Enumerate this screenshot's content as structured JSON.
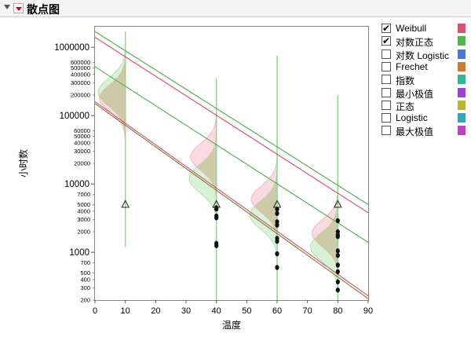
{
  "window": {
    "title": "散点图"
  },
  "chart_data": {
    "type": "scatter",
    "xlabel": "温度",
    "ylabel": "小时数",
    "xlim": [
      0,
      90
    ],
    "ylim": [
      200,
      2000000
    ],
    "yscale": "log",
    "xticks": [
      0,
      10,
      20,
      30,
      40,
      50,
      60,
      70,
      80,
      90
    ],
    "yticks_major": [
      {
        "v": 1000000,
        "label": "1000000"
      },
      {
        "v": 100000,
        "label": "100000"
      },
      {
        "v": 10000,
        "label": "10000"
      },
      {
        "v": 1000,
        "label": "1000"
      }
    ],
    "yticks_minor": [
      {
        "v": 600000,
        "label": "600000"
      },
      {
        "v": 500000,
        "label": "500000"
      },
      {
        "v": 400000,
        "label": "400000"
      },
      {
        "v": 300000,
        "label": "300000"
      },
      {
        "v": 200000,
        "label": "200000"
      },
      {
        "v": 60000,
        "label": "60000"
      },
      {
        "v": 50000,
        "label": "50000"
      },
      {
        "v": 40000,
        "label": "40000"
      },
      {
        "v": 30000,
        "label": "30000"
      },
      {
        "v": 20000,
        "label": "20000"
      },
      {
        "v": 7000,
        "label": "7000"
      },
      {
        "v": 5000,
        "label": "5000"
      },
      {
        "v": 4000,
        "label": "4000"
      },
      {
        "v": 3000,
        "label": "3000"
      },
      {
        "v": 2000,
        "label": "2000"
      },
      {
        "v": 700,
        "label": "700"
      },
      {
        "v": 500,
        "label": "500"
      },
      {
        "v": 400,
        "label": "400"
      },
      {
        "v": 300,
        "label": "300"
      },
      {
        "v": 200,
        "label": "200"
      }
    ],
    "points": [
      {
        "x": 40,
        "y": 4500
      },
      {
        "x": 40,
        "y": 4300
      },
      {
        "x": 40,
        "y": 3400
      },
      {
        "x": 40,
        "y": 3200
      },
      {
        "x": 40,
        "y": 1350
      },
      {
        "x": 40,
        "y": 1250
      },
      {
        "x": 60,
        "y": 4300
      },
      {
        "x": 60,
        "y": 3700
      },
      {
        "x": 60,
        "y": 2800
      },
      {
        "x": 60,
        "y": 2500
      },
      {
        "x": 60,
        "y": 1600
      },
      {
        "x": 60,
        "y": 1450
      },
      {
        "x": 60,
        "y": 950
      },
      {
        "x": 60,
        "y": 600
      },
      {
        "x": 80,
        "y": 2900
      },
      {
        "x": 80,
        "y": 2000
      },
      {
        "x": 80,
        "y": 1800
      },
      {
        "x": 80,
        "y": 1700
      },
      {
        "x": 80,
        "y": 1050
      },
      {
        "x": 80,
        "y": 900
      },
      {
        "x": 80,
        "y": 650
      },
      {
        "x": 80,
        "y": 520
      },
      {
        "x": 80,
        "y": 370
      },
      {
        "x": 80,
        "y": 280
      }
    ],
    "censored_points": [
      {
        "x": 10,
        "y": 5000
      },
      {
        "x": 40,
        "y": 5000
      },
      {
        "x": 60,
        "y": 5000
      },
      {
        "x": 80,
        "y": 5000
      }
    ],
    "fit_lines": [
      {
        "series": "Weibull",
        "color": "#d9506a",
        "points": [
          [
            0,
            1400000
          ],
          [
            90,
            3800
          ]
        ]
      },
      {
        "series": "Weibull",
        "color": "#d9506a",
        "points": [
          [
            0,
            160000
          ],
          [
            90,
            230
          ]
        ]
      },
      {
        "series": "对数正态",
        "color": "#4cb050",
        "points": [
          [
            0,
            1700000
          ],
          [
            90,
            5000
          ]
        ]
      },
      {
        "series": "对数正态",
        "color": "#4cb050",
        "points": [
          [
            0,
            520000
          ],
          [
            90,
            1400
          ]
        ]
      },
      {
        "series": "对数正态",
        "color": "#7a7a3a",
        "points": [
          [
            0,
            150000
          ],
          [
            90,
            210
          ]
        ]
      }
    ],
    "densities": [
      {
        "x": 10,
        "y_center": 220000,
        "y_peak_weibull": 180000,
        "y_top": 1700000,
        "y_bottom": 1200,
        "width_x": 4.5
      },
      {
        "x": 40,
        "y_center": 12000,
        "y_peak_weibull": 25000,
        "y_top": 350000,
        "y_bottom": 200,
        "width_x": 4.5
      },
      {
        "x": 60,
        "y_center": 3500,
        "y_peak_weibull": 6000,
        "y_top": 750000,
        "y_bottom": 200,
        "width_x": 4.5
      },
      {
        "x": 80,
        "y_center": 1200,
        "y_peak_weibull": 1900,
        "y_top": 200000,
        "y_bottom": 200,
        "width_x": 4.5
      }
    ]
  },
  "legend": {
    "items": [
      {
        "label": "Weibull",
        "checked": true,
        "color": "#e0506e"
      },
      {
        "label": "对数正态",
        "checked": true,
        "color": "#50b848"
      },
      {
        "label": "对数 Logistic",
        "checked": false,
        "color": "#4a78d8"
      },
      {
        "label": "Frechet",
        "checked": false,
        "color": "#d07a30"
      },
      {
        "label": "指数",
        "checked": false,
        "color": "#30b890"
      },
      {
        "label": "最小极值",
        "checked": false,
        "color": "#a040d8"
      },
      {
        "label": "正态",
        "checked": false,
        "color": "#b8b830"
      },
      {
        "label": "Logistic",
        "checked": false,
        "color": "#30a8b8"
      },
      {
        "label": "最大极值",
        "checked": false,
        "color": "#c040c8"
      }
    ],
    "check_glyph": "✔"
  }
}
